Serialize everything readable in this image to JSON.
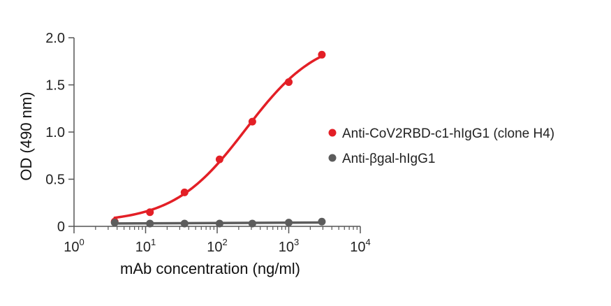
{
  "chart_data": {
    "type": "scatter",
    "xlabel": "mAb concentration (ng/ml)",
    "ylabel": "OD (490 nm)",
    "x_scale": "log",
    "xlim": [
      1,
      10000
    ],
    "ylim": [
      0,
      2.0
    ],
    "x_ticks": [
      {
        "value": 1,
        "base": "10",
        "exp": "0"
      },
      {
        "value": 10,
        "base": "10",
        "exp": "1"
      },
      {
        "value": 100,
        "base": "10",
        "exp": "2"
      },
      {
        "value": 1000,
        "base": "10",
        "exp": "3"
      },
      {
        "value": 10000,
        "base": "10",
        "exp": "4"
      }
    ],
    "y_ticks": [
      {
        "value": 0,
        "label": "0"
      },
      {
        "value": 0.5,
        "label": "0.5"
      },
      {
        "value": 1.0,
        "label": "1.0"
      },
      {
        "value": 1.5,
        "label": "1.5"
      },
      {
        "value": 2.0,
        "label": "2.0"
      }
    ],
    "grid": false,
    "legend_position": "right",
    "series": [
      {
        "name": "Anti-CoV2RBD-c1-hIgG1 (clone H4)",
        "color": "#e31f26",
        "x": [
          3.7,
          11.5,
          35,
          108,
          310,
          1000,
          2900
        ],
        "y": [
          0.05,
          0.15,
          0.36,
          0.71,
          1.11,
          1.53,
          1.82
        ],
        "fit": "sigmoid"
      },
      {
        "name": "Anti-βgal-hIgG1",
        "color": "#5c5c5c",
        "x": [
          3.7,
          11.5,
          35,
          108,
          310,
          1000,
          2900
        ],
        "y": [
          0.04,
          0.03,
          0.03,
          0.03,
          0.03,
          0.04,
          0.05
        ],
        "fit": "linear"
      }
    ]
  }
}
